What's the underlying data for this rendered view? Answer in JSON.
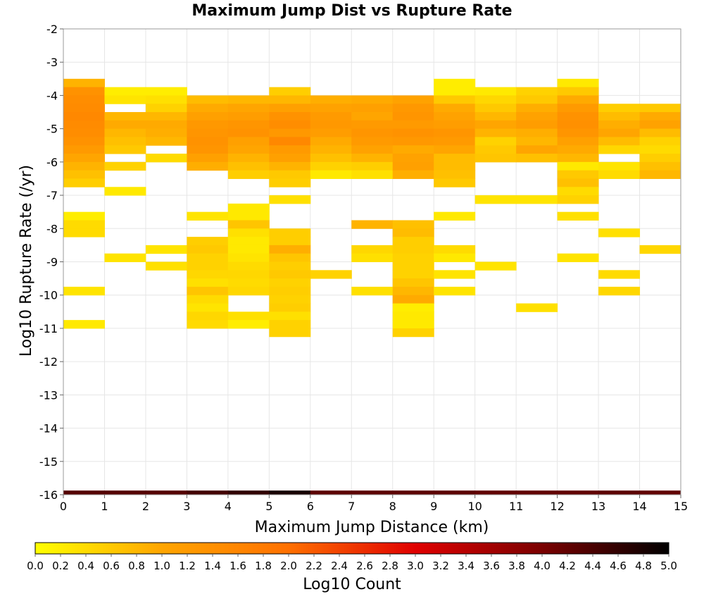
{
  "chart_data": {
    "type": "heatmap",
    "title": "Maximum Jump Dist vs Rupture Rate",
    "xlabel": "Maximum Jump Distance (km)",
    "ylabel": "Log10 Rupture Rate (/yr)",
    "colorbar_label": "Log10 Count",
    "xlim": [
      0,
      15
    ],
    "ylim": [
      -16,
      -2
    ],
    "x_ticks": [
      "0",
      "1",
      "2",
      "3",
      "4",
      "5",
      "6",
      "7",
      "8",
      "9",
      "10",
      "11",
      "12",
      "13",
      "14",
      "15"
    ],
    "y_ticks": [
      "-2",
      "-3",
      "-4",
      "-5",
      "-6",
      "-7",
      "-8",
      "-9",
      "-10",
      "-11",
      "-12",
      "-13",
      "-14",
      "-15",
      "-16"
    ],
    "colorbar_ticks": [
      "0.0",
      "0.2",
      "0.4",
      "0.6",
      "0.8",
      "1.0",
      "1.2",
      "1.4",
      "1.6",
      "1.8",
      "2.0",
      "2.2",
      "2.4",
      "2.6",
      "2.8",
      "3.0",
      "3.2",
      "3.4",
      "3.6",
      "3.8",
      "4.0",
      "4.2",
      "4.4",
      "4.6",
      "4.8",
      "5.0"
    ],
    "colorbar_range": [
      0,
      5
    ],
    "colormap": [
      "#ffff00",
      "#ffa500",
      "#ff7000",
      "#e00000",
      "#7a0000",
      "#000000"
    ],
    "grid": true,
    "y_bin_size": 0.25,
    "columns": [
      {
        "x": 0,
        "cells": [
          {
            "y": -3.5,
            "v": 0.85
          },
          {
            "y": -3.75,
            "v": 1.35
          },
          {
            "y": -4.0,
            "v": 1.45
          },
          {
            "y": -4.25,
            "v": 1.5
          },
          {
            "y": -4.5,
            "v": 1.55
          },
          {
            "y": -4.75,
            "v": 1.5
          },
          {
            "y": -5.0,
            "v": 1.45
          },
          {
            "y": -5.25,
            "v": 1.35
          },
          {
            "y": -5.5,
            "v": 1.2
          },
          {
            "y": -5.75,
            "v": 1.0
          },
          {
            "y": -6.0,
            "v": 0.85
          },
          {
            "y": -6.25,
            "v": 0.7
          },
          {
            "y": -6.5,
            "v": 0.55
          },
          {
            "y": -7.5,
            "v": 0.2
          },
          {
            "y": -7.75,
            "v": 0.4
          },
          {
            "y": -8.0,
            "v": 0.4
          },
          {
            "y": -9.75,
            "v": 0.3
          },
          {
            "y": -10.75,
            "v": 0.25
          }
        ]
      },
      {
        "x": 1,
        "cells": [
          {
            "y": -3.75,
            "v": 0.2
          },
          {
            "y": -4.0,
            "v": 0.3
          },
          {
            "y": -4.5,
            "v": 0.8
          },
          {
            "y": -4.75,
            "v": 0.95
          },
          {
            "y": -5.0,
            "v": 0.8
          },
          {
            "y": -5.25,
            "v": 0.7
          },
          {
            "y": -5.5,
            "v": 0.6
          },
          {
            "y": -6.0,
            "v": 0.5
          },
          {
            "y": -6.75,
            "v": 0.25
          },
          {
            "y": -8.75,
            "v": 0.3
          }
        ]
      },
      {
        "x": 2,
        "cells": [
          {
            "y": -3.75,
            "v": 0.2
          },
          {
            "y": -4.0,
            "v": 0.35
          },
          {
            "y": -4.25,
            "v": 0.5
          },
          {
            "y": -4.5,
            "v": 0.8
          },
          {
            "y": -4.75,
            "v": 0.95
          },
          {
            "y": -5.0,
            "v": 0.9
          },
          {
            "y": -5.25,
            "v": 0.8
          },
          {
            "y": -5.75,
            "v": 0.4
          },
          {
            "y": -8.5,
            "v": 0.3
          },
          {
            "y": -9.0,
            "v": 0.35
          }
        ]
      },
      {
        "x": 3,
        "cells": [
          {
            "y": -4.0,
            "v": 0.75
          },
          {
            "y": -4.25,
            "v": 0.95
          },
          {
            "y": -4.5,
            "v": 1.1
          },
          {
            "y": -4.75,
            "v": 1.25
          },
          {
            "y": -5.0,
            "v": 1.3
          },
          {
            "y": -5.25,
            "v": 1.35
          },
          {
            "y": -5.5,
            "v": 1.3
          },
          {
            "y": -5.75,
            "v": 1.1
          },
          {
            "y": -6.0,
            "v": 0.9
          },
          {
            "y": -7.5,
            "v": 0.3
          },
          {
            "y": -8.25,
            "v": 0.55
          },
          {
            "y": -8.5,
            "v": 0.6
          },
          {
            "y": -8.75,
            "v": 0.5
          },
          {
            "y": -9.0,
            "v": 0.5
          },
          {
            "y": -9.25,
            "v": 0.45
          },
          {
            "y": -9.5,
            "v": 0.35
          },
          {
            "y": -9.75,
            "v": 0.65
          },
          {
            "y": -10.0,
            "v": 0.4
          },
          {
            "y": -10.25,
            "v": 0.3
          },
          {
            "y": -10.5,
            "v": 0.45
          },
          {
            "y": -10.75,
            "v": 0.4
          }
        ]
      },
      {
        "x": 4,
        "cells": [
          {
            "y": -4.0,
            "v": 0.8
          },
          {
            "y": -4.25,
            "v": 1.0
          },
          {
            "y": -4.5,
            "v": 1.15
          },
          {
            "y": -4.75,
            "v": 1.3
          },
          {
            "y": -5.0,
            "v": 1.35
          },
          {
            "y": -5.25,
            "v": 1.1
          },
          {
            "y": -5.5,
            "v": 1.0
          },
          {
            "y": -5.75,
            "v": 0.85
          },
          {
            "y": -6.0,
            "v": 0.7
          },
          {
            "y": -6.25,
            "v": 0.55
          },
          {
            "y": -7.25,
            "v": 0.25
          },
          {
            "y": -7.5,
            "v": 0.25
          },
          {
            "y": -7.75,
            "v": 0.65
          },
          {
            "y": -8.0,
            "v": 0.35
          },
          {
            "y": -8.25,
            "v": 0.25
          },
          {
            "y": -8.5,
            "v": 0.25
          },
          {
            "y": -8.75,
            "v": 0.3
          },
          {
            "y": -9.0,
            "v": 0.4
          },
          {
            "y": -9.25,
            "v": 0.45
          },
          {
            "y": -9.5,
            "v": 0.4
          },
          {
            "y": -9.75,
            "v": 0.45
          },
          {
            "y": -10.5,
            "v": 0.35
          },
          {
            "y": -10.75,
            "v": 0.2
          }
        ]
      },
      {
        "x": 5,
        "cells": [
          {
            "y": -3.75,
            "v": 0.55
          },
          {
            "y": -4.0,
            "v": 0.8
          },
          {
            "y": -4.25,
            "v": 1.1
          },
          {
            "y": -4.5,
            "v": 1.35
          },
          {
            "y": -4.75,
            "v": 1.45
          },
          {
            "y": -5.0,
            "v": 1.25
          },
          {
            "y": -5.25,
            "v": 1.55
          },
          {
            "y": -5.5,
            "v": 1.2
          },
          {
            "y": -5.75,
            "v": 1.1
          },
          {
            "y": -6.0,
            "v": 0.85
          },
          {
            "y": -6.25,
            "v": 0.6
          },
          {
            "y": -6.5,
            "v": 0.55
          },
          {
            "y": -7.0,
            "v": 0.35
          },
          {
            "y": -8.0,
            "v": 0.55
          },
          {
            "y": -8.25,
            "v": 0.55
          },
          {
            "y": -8.5,
            "v": 0.9
          },
          {
            "y": -8.75,
            "v": 0.65
          },
          {
            "y": -9.0,
            "v": 0.55
          },
          {
            "y": -9.25,
            "v": 0.6
          },
          {
            "y": -9.5,
            "v": 0.5
          },
          {
            "y": -9.75,
            "v": 0.55
          },
          {
            "y": -10.0,
            "v": 0.5
          },
          {
            "y": -10.25,
            "v": 0.55
          },
          {
            "y": -10.5,
            "v": 0.35
          },
          {
            "y": -10.75,
            "v": 0.5
          },
          {
            "y": -11.0,
            "v": 0.5
          }
        ]
      },
      {
        "x": 6,
        "cells": [
          {
            "y": -4.0,
            "v": 0.9
          },
          {
            "y": -4.25,
            "v": 1.05
          },
          {
            "y": -4.5,
            "v": 1.2
          },
          {
            "y": -4.75,
            "v": 1.25
          },
          {
            "y": -5.0,
            "v": 1.15
          },
          {
            "y": -5.25,
            "v": 0.95
          },
          {
            "y": -5.5,
            "v": 0.85
          },
          {
            "y": -5.75,
            "v": 0.7
          },
          {
            "y": -6.0,
            "v": 0.5
          },
          {
            "y": -6.25,
            "v": 0.25
          },
          {
            "y": -9.25,
            "v": 0.5
          }
        ]
      },
      {
        "x": 7,
        "cells": [
          {
            "y": -4.0,
            "v": 0.95
          },
          {
            "y": -4.25,
            "v": 1.1
          },
          {
            "y": -4.5,
            "v": 1.0
          },
          {
            "y": -4.75,
            "v": 1.2
          },
          {
            "y": -5.0,
            "v": 1.3
          },
          {
            "y": -5.25,
            "v": 1.2
          },
          {
            "y": -5.5,
            "v": 1.05
          },
          {
            "y": -5.75,
            "v": 0.85
          },
          {
            "y": -6.0,
            "v": 0.55
          },
          {
            "y": -6.25,
            "v": 0.35
          },
          {
            "y": -7.75,
            "v": 0.85
          },
          {
            "y": -8.5,
            "v": 0.45
          },
          {
            "y": -8.75,
            "v": 0.35
          },
          {
            "y": -9.75,
            "v": 0.35
          }
        ]
      },
      {
        "x": 8,
        "cells": [
          {
            "y": -4.0,
            "v": 1.05
          },
          {
            "y": -4.25,
            "v": 1.25
          },
          {
            "y": -4.5,
            "v": 1.3
          },
          {
            "y": -4.75,
            "v": 1.2
          },
          {
            "y": -5.0,
            "v": 1.35
          },
          {
            "y": -5.25,
            "v": 1.25
          },
          {
            "y": -5.5,
            "v": 0.95
          },
          {
            "y": -5.75,
            "v": 1.05
          },
          {
            "y": -6.0,
            "v": 1.1
          },
          {
            "y": -6.25,
            "v": 0.9
          },
          {
            "y": -7.75,
            "v": 0.7
          },
          {
            "y": -8.0,
            "v": 0.75
          },
          {
            "y": -8.25,
            "v": 0.55
          },
          {
            "y": -8.5,
            "v": 0.55
          },
          {
            "y": -8.75,
            "v": 0.5
          },
          {
            "y": -9.0,
            "v": 0.5
          },
          {
            "y": -9.25,
            "v": 0.5
          },
          {
            "y": -9.5,
            "v": 0.65
          },
          {
            "y": -9.75,
            "v": 0.8
          },
          {
            "y": -10.0,
            "v": 0.95
          },
          {
            "y": -10.25,
            "v": 0.2
          },
          {
            "y": -10.5,
            "v": 0.25
          },
          {
            "y": -10.75,
            "v": 0.25
          },
          {
            "y": -11.0,
            "v": 0.5
          }
        ]
      },
      {
        "x": 9,
        "cells": [
          {
            "y": -3.5,
            "v": 0.2
          },
          {
            "y": -3.75,
            "v": 0.2
          },
          {
            "y": -4.0,
            "v": 0.6
          },
          {
            "y": -4.25,
            "v": 0.95
          },
          {
            "y": -4.5,
            "v": 1.05
          },
          {
            "y": -4.75,
            "v": 1.15
          },
          {
            "y": -5.0,
            "v": 1.3
          },
          {
            "y": -5.25,
            "v": 1.2
          },
          {
            "y": -5.5,
            "v": 1.0
          },
          {
            "y": -5.75,
            "v": 0.75
          },
          {
            "y": -6.0,
            "v": 0.75
          },
          {
            "y": -6.25,
            "v": 0.7
          },
          {
            "y": -6.5,
            "v": 0.6
          },
          {
            "y": -7.5,
            "v": 0.25
          },
          {
            "y": -8.5,
            "v": 0.4
          },
          {
            "y": -8.75,
            "v": 0.25
          },
          {
            "y": -9.25,
            "v": 0.3
          },
          {
            "y": -9.75,
            "v": 0.3
          }
        ]
      },
      {
        "x": 10,
        "cells": [
          {
            "y": -3.75,
            "v": 0.25
          },
          {
            "y": -4.0,
            "v": 0.45
          },
          {
            "y": -4.25,
            "v": 0.6
          },
          {
            "y": -4.5,
            "v": 0.8
          },
          {
            "y": -4.75,
            "v": 1.0
          },
          {
            "y": -5.0,
            "v": 0.85
          },
          {
            "y": -5.25,
            "v": 0.5
          },
          {
            "y": -5.5,
            "v": 0.6
          },
          {
            "y": -5.75,
            "v": 0.65
          },
          {
            "y": -7.0,
            "v": 0.3
          },
          {
            "y": -9.0,
            "v": 0.3
          }
        ]
      },
      {
        "x": 11,
        "cells": [
          {
            "y": -3.75,
            "v": 0.5
          },
          {
            "y": -4.0,
            "v": 0.6
          },
          {
            "y": -4.25,
            "v": 0.9
          },
          {
            "y": -4.5,
            "v": 1.05
          },
          {
            "y": -4.75,
            "v": 1.15
          },
          {
            "y": -5.0,
            "v": 0.9
          },
          {
            "y": -5.25,
            "v": 0.8
          },
          {
            "y": -5.5,
            "v": 1.0
          },
          {
            "y": -5.75,
            "v": 0.7
          },
          {
            "y": -7.0,
            "v": 0.3
          },
          {
            "y": -10.25,
            "v": 0.35
          }
        ]
      },
      {
        "x": 12,
        "cells": [
          {
            "y": -3.5,
            "v": 0.25
          },
          {
            "y": -3.75,
            "v": 0.6
          },
          {
            "y": -4.0,
            "v": 0.95
          },
          {
            "y": -4.25,
            "v": 1.2
          },
          {
            "y": -4.5,
            "v": 1.35
          },
          {
            "y": -4.75,
            "v": 1.4
          },
          {
            "y": -5.0,
            "v": 1.3
          },
          {
            "y": -5.25,
            "v": 1.1
          },
          {
            "y": -5.5,
            "v": 0.95
          },
          {
            "y": -5.75,
            "v": 0.8
          },
          {
            "y": -6.0,
            "v": 0.25
          },
          {
            "y": -6.25,
            "v": 0.6
          },
          {
            "y": -6.5,
            "v": 0.7
          },
          {
            "y": -6.75,
            "v": 0.4
          },
          {
            "y": -7.0,
            "v": 0.5
          },
          {
            "y": -7.5,
            "v": 0.35
          },
          {
            "y": -8.75,
            "v": 0.3
          }
        ]
      },
      {
        "x": 13,
        "cells": [
          {
            "y": -4.25,
            "v": 0.55
          },
          {
            "y": -4.5,
            "v": 0.75
          },
          {
            "y": -4.75,
            "v": 0.9
          },
          {
            "y": -5.0,
            "v": 1.0
          },
          {
            "y": -5.25,
            "v": 0.75
          },
          {
            "y": -5.5,
            "v": 0.45
          },
          {
            "y": -6.0,
            "v": 0.3
          },
          {
            "y": -6.25,
            "v": 0.4
          },
          {
            "y": -8.0,
            "v": 0.35
          },
          {
            "y": -9.25,
            "v": 0.4
          },
          {
            "y": -9.75,
            "v": 0.45
          }
        ]
      },
      {
        "x": 14,
        "cells": [
          {
            "y": -4.25,
            "v": 0.6
          },
          {
            "y": -4.5,
            "v": 0.95
          },
          {
            "y": -4.75,
            "v": 1.05
          },
          {
            "y": -5.0,
            "v": 0.75
          },
          {
            "y": -5.25,
            "v": 0.5
          },
          {
            "y": -5.5,
            "v": 0.4
          },
          {
            "y": -5.75,
            "v": 0.55
          },
          {
            "y": -6.0,
            "v": 0.7
          },
          {
            "y": -6.25,
            "v": 0.8
          },
          {
            "y": -8.5,
            "v": 0.45
          }
        ]
      }
    ],
    "bottom_row": {
      "y": -16,
      "values": [
        4.3,
        4.3,
        4.3,
        4.45,
        4.6,
        4.8,
        4.25,
        4.25,
        4.25,
        4.25,
        4.2,
        4.2,
        4.2,
        4.25,
        4.2
      ]
    }
  }
}
